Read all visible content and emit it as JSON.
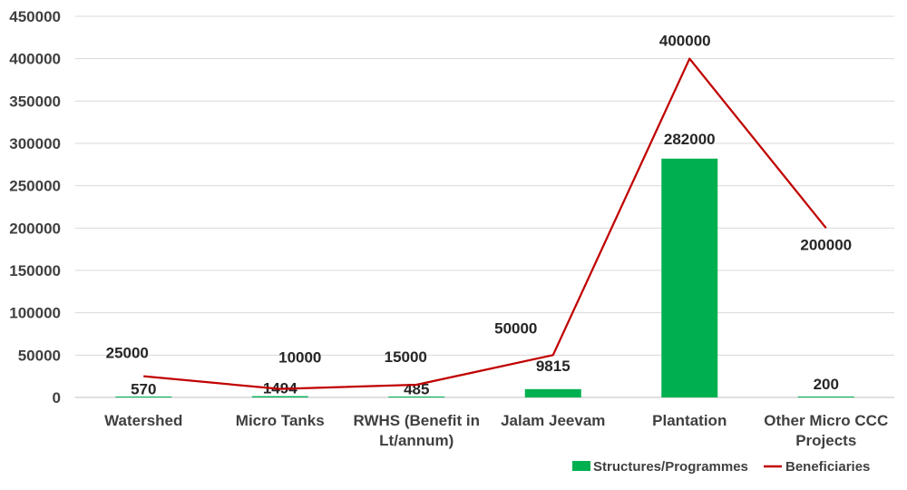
{
  "chart_data": {
    "type": "bar",
    "categories": [
      [
        "Watershed"
      ],
      [
        "Micro Tanks"
      ],
      [
        "RWHS (Benefit in",
        "Lt/annum)"
      ],
      [
        "Jalam Jeevam"
      ],
      [
        "Plantation"
      ],
      [
        "Other Micro CCC",
        "Projects"
      ]
    ],
    "series": [
      {
        "name": "Structures/Programmes",
        "type": "bar",
        "color": "#00B050",
        "values": [
          570,
          1494,
          485,
          9815,
          282000,
          200
        ],
        "labels": [
          "570",
          "1494",
          "485",
          "9815",
          "282000",
          "200"
        ]
      },
      {
        "name": "Beneficiaries",
        "type": "line",
        "color": "#C00000",
        "values": [
          25000,
          10000,
          15000,
          50000,
          400000,
          200000
        ],
        "labels": [
          "25000",
          "10000",
          "15000",
          "50000",
          "400000",
          "200000"
        ]
      }
    ],
    "y_ticks": [
      "0",
      "50000",
      "100000",
      "150000",
      "200000",
      "250000",
      "300000",
      "350000",
      "400000",
      "450000"
    ],
    "ylim": [
      0,
      450000
    ],
    "grid": true,
    "legend": "bottom-right"
  }
}
